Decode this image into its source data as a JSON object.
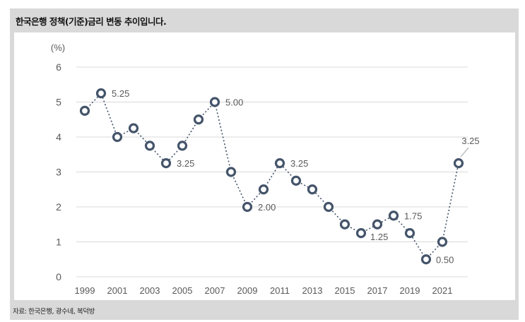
{
  "chart_data": {
    "type": "line",
    "title": "한국은행 정책(기준)금리 변동 추이입니다.",
    "source": "자료: 한국은행, 광수네, 복덕방",
    "ylabel": "(%)",
    "ylim": [
      0,
      6
    ],
    "yticks": [
      "0",
      "1",
      "2",
      "3",
      "4",
      "5",
      "6"
    ],
    "xticks": [
      "1999",
      "2001",
      "2003",
      "2005",
      "2007",
      "2009",
      "2011",
      "2013",
      "2015",
      "2017",
      "2019",
      "2021"
    ],
    "x": [
      1999,
      2000,
      2001,
      2002,
      2003,
      2004,
      2005,
      2006,
      2007,
      2008,
      2009,
      2010,
      2011,
      2012,
      2013,
      2014,
      2015,
      2016,
      2017,
      2018,
      2019,
      2020,
      2021,
      2022
    ],
    "values": [
      4.75,
      5.25,
      4.0,
      4.25,
      3.75,
      3.25,
      3.75,
      4.5,
      5.0,
      3.0,
      2.0,
      2.5,
      3.25,
      2.75,
      2.5,
      2.0,
      1.5,
      1.25,
      1.5,
      1.75,
      1.25,
      0.5,
      1.0,
      3.25
    ],
    "annotations": [
      {
        "year": 2000,
        "text": "5.25"
      },
      {
        "year": 2004,
        "text": "3.25"
      },
      {
        "year": 2007,
        "text": "5.00"
      },
      {
        "year": 2009,
        "text": "2.00"
      },
      {
        "year": 2011,
        "text": "3.25"
      },
      {
        "year": 2016,
        "text": "1.25"
      },
      {
        "year": 2018,
        "text": "1.75"
      },
      {
        "year": 2020,
        "text": "0.50"
      },
      {
        "year": 2022,
        "text": "3.25"
      }
    ],
    "grid": true,
    "line_color": "#44546a",
    "marker_color": "#44546a"
  }
}
